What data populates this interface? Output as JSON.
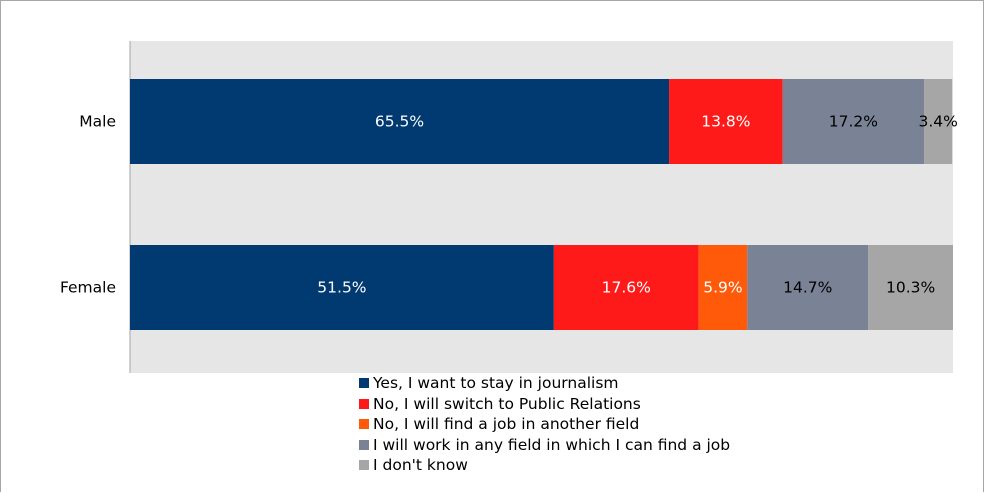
{
  "chart_data": {
    "type": "bar",
    "orientation": "horizontal",
    "stacked": true,
    "percent": true,
    "categories": [
      "Male",
      "Female"
    ],
    "series": [
      {
        "name": "Yes, I want to stay in journalism",
        "color": "#003a70",
        "label_color": "#ffffff",
        "values": [
          65.5,
          51.5
        ],
        "labels": [
          "65.5%",
          "51.5%"
        ]
      },
      {
        "name": "No, I will switch to Public Relations",
        "color": "#ff1a1a",
        "label_color": "#ffffff",
        "values": [
          13.8,
          17.6
        ],
        "labels": [
          "13.8%",
          "17.6%"
        ]
      },
      {
        "name": "No, I will find a job in another field",
        "color": "#ff5a0a",
        "label_color": "#ffffff",
        "values": [
          0,
          5.9
        ],
        "labels": [
          "",
          "5.9%"
        ]
      },
      {
        "name": "I will work in any field in which I can find a job",
        "color": "#7a8296",
        "label_color": "#000000",
        "values": [
          17.2,
          14.7
        ],
        "labels": [
          "17.2%",
          "14.7%"
        ]
      },
      {
        "name": "I don't know",
        "color": "#a6a6a6",
        "label_color": "#000000",
        "values": [
          3.4,
          10.3
        ],
        "labels": [
          "3.4%",
          "10.3%"
        ]
      }
    ],
    "xlim": [
      0,
      100
    ],
    "plot_background": "#e6e6e6",
    "legend_position": "bottom"
  }
}
